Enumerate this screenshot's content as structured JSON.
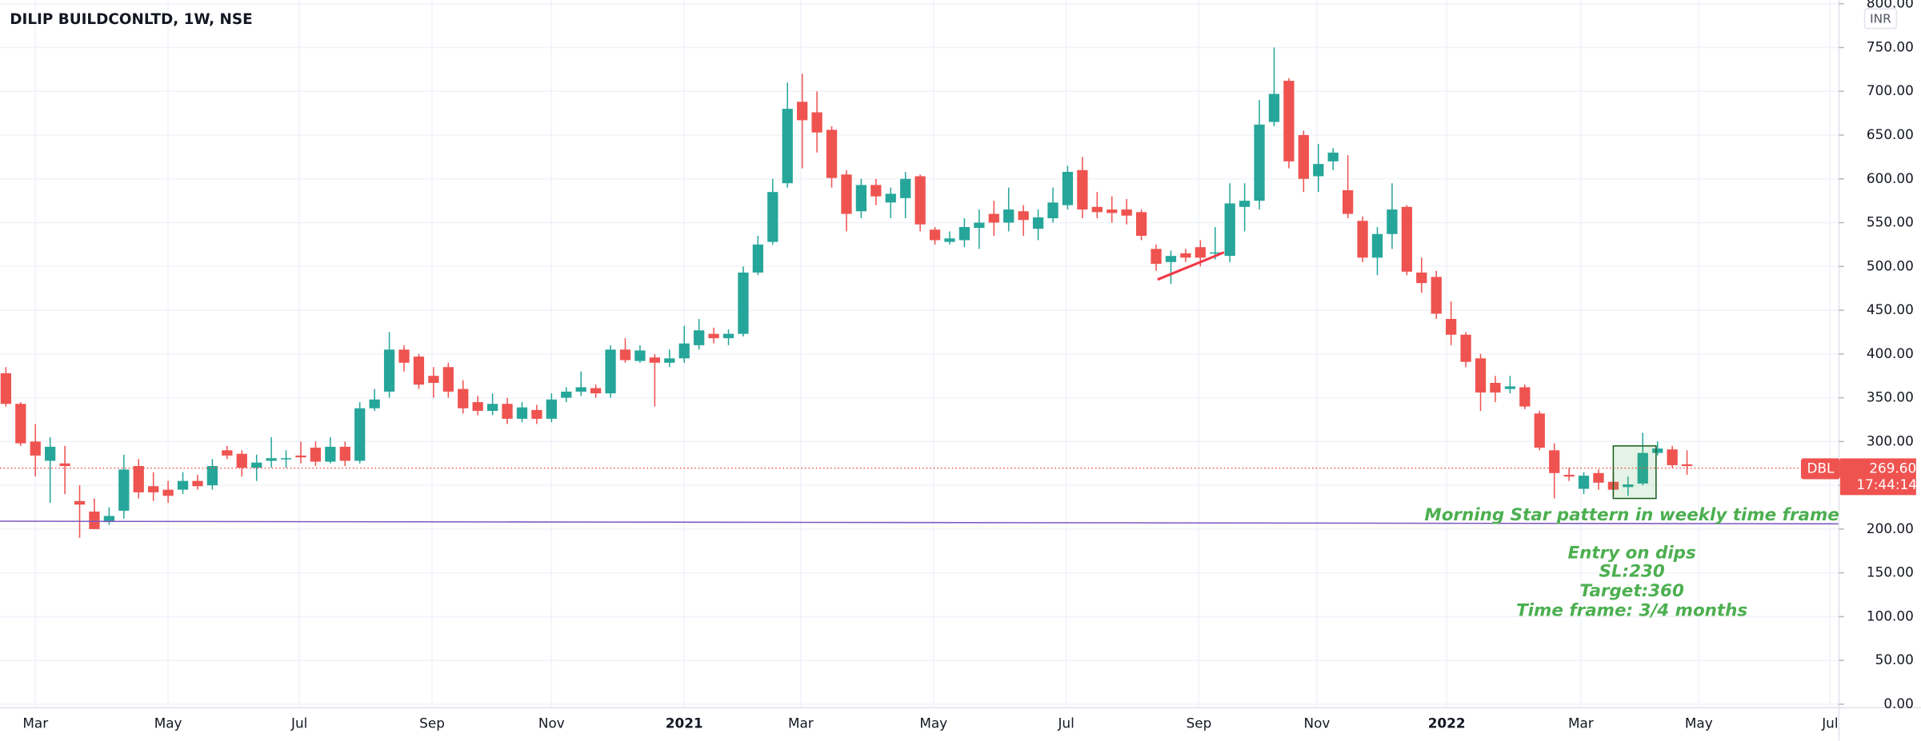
{
  "chart_data": {
    "type": "candlestick",
    "title": "DILIP BUILDCONLTD, 1W, NSE",
    "currency": "INR",
    "symbol": "DBL",
    "up_color": "#26a69a",
    "down_color": "#ef5350",
    "open": [
      378,
      343,
      300,
      278,
      275,
      232,
      220,
      208,
      221,
      272,
      249,
      245,
      245,
      255,
      250,
      290,
      286,
      270,
      278,
      280,
      284,
      293,
      277,
      294,
      278,
      338,
      357,
      405,
      397,
      375,
      385,
      360,
      345,
      335,
      343,
      326,
      336,
      326,
      350,
      357,
      361,
      355,
      405,
      392,
      396,
      390,
      395,
      410,
      423,
      418,
      423,
      493,
      528,
      595,
      688,
      676,
      656,
      605,
      563,
      593,
      573,
      578,
      603,
      542,
      528,
      530,
      544,
      560,
      550,
      563,
      543,
      555,
      570,
      610,
      568,
      565,
      565,
      562,
      520,
      505,
      515,
      522,
      515,
      512,
      568,
      575,
      665,
      712,
      650,
      603,
      620,
      587,
      552,
      510,
      537,
      568,
      493,
      488,
      440,
      422,
      395,
      367,
      360,
      362,
      332,
      290,
      262,
      246,
      264,
      254,
      248,
      252,
      287,
      291,
      274
    ],
    "high": [
      385,
      345,
      320,
      305,
      295,
      250,
      235,
      225,
      285,
      280,
      265,
      255,
      265,
      262,
      280,
      295,
      290,
      285,
      305,
      290,
      300,
      300,
      305,
      300,
      345,
      360,
      425,
      410,
      400,
      385,
      390,
      370,
      352,
      355,
      350,
      345,
      342,
      355,
      362,
      380,
      365,
      410,
      418,
      410,
      400,
      405,
      432,
      440,
      430,
      428,
      500,
      535,
      600,
      710,
      720,
      700,
      660,
      610,
      600,
      600,
      590,
      608,
      605,
      545,
      540,
      555,
      565,
      575,
      590,
      570,
      565,
      590,
      615,
      625,
      585,
      580,
      577,
      565,
      525,
      518,
      520,
      530,
      545,
      595,
      595,
      690,
      750,
      715,
      655,
      640,
      635,
      627,
      557,
      545,
      595,
      570,
      510,
      495,
      460,
      425,
      400,
      375,
      375,
      365,
      335,
      298,
      270,
      265,
      268,
      265,
      260,
      310,
      300,
      295,
      290
    ],
    "low": [
      340,
      295,
      260,
      230,
      240,
      190,
      200,
      205,
      212,
      235,
      232,
      230,
      240,
      245,
      245,
      280,
      260,
      255,
      270,
      270,
      275,
      272,
      275,
      272,
      275,
      335,
      350,
      380,
      360,
      350,
      350,
      332,
      330,
      330,
      320,
      322,
      320,
      322,
      345,
      352,
      350,
      350,
      390,
      390,
      340,
      385,
      390,
      405,
      412,
      410,
      420,
      490,
      525,
      590,
      612,
      630,
      590,
      540,
      555,
      570,
      555,
      555,
      540,
      525,
      525,
      522,
      520,
      535,
      540,
      535,
      530,
      550,
      565,
      555,
      555,
      550,
      548,
      530,
      495,
      480,
      505,
      500,
      508,
      505,
      540,
      565,
      660,
      612,
      585,
      585,
      610,
      555,
      505,
      490,
      520,
      490,
      470,
      440,
      410,
      385,
      335,
      345,
      355,
      337,
      290,
      235,
      255,
      240,
      245,
      238,
      238,
      250,
      284,
      270,
      262
    ],
    "close": [
      343,
      298,
      284,
      294,
      272,
      228,
      200,
      215,
      268,
      242,
      242,
      238,
      255,
      249,
      272,
      284,
      270,
      276,
      281,
      281,
      282,
      277,
      294,
      278,
      338,
      348,
      405,
      390,
      365,
      367,
      357,
      338,
      335,
      343,
      326,
      339,
      326,
      348,
      357,
      362,
      355,
      405,
      393,
      404,
      390,
      395,
      412,
      427,
      418,
      423,
      493,
      525,
      585,
      680,
      667,
      653,
      601,
      560,
      593,
      580,
      583,
      600,
      548,
      530,
      532,
      545,
      550,
      550,
      565,
      553,
      556,
      573,
      608,
      565,
      562,
      561,
      558,
      535,
      503,
      512,
      510,
      510,
      516,
      572,
      575,
      662,
      697,
      620,
      600,
      617,
      630,
      560,
      510,
      537,
      565,
      494,
      481,
      446,
      422,
      391,
      356,
      356,
      363,
      340,
      293,
      264,
      260,
      261,
      253,
      245,
      251,
      287,
      292,
      273,
      272
    ],
    "xlim": [
      -0.4,
      124.3
    ],
    "xticks": [
      {
        "value": 2,
        "label": "Mar"
      },
      {
        "value": 11,
        "label": "May"
      },
      {
        "value": 19.9,
        "label": "Jul"
      },
      {
        "value": 28.9,
        "label": "Sep"
      },
      {
        "value": 37,
        "label": "Nov"
      },
      {
        "value": 46,
        "label": "2021"
      },
      {
        "value": 53.9,
        "label": "Mar"
      },
      {
        "value": 62.9,
        "label": "May"
      },
      {
        "value": 71.9,
        "label": "Jul"
      },
      {
        "value": 80.9,
        "label": "Sep"
      },
      {
        "value": 88.9,
        "label": "Nov"
      },
      {
        "value": 97.7,
        "label": "2022"
      },
      {
        "value": 106.8,
        "label": "Mar"
      },
      {
        "value": 114.8,
        "label": "May"
      },
      {
        "value": 123.7,
        "label": "Jul"
      }
    ],
    "ylim": [
      -4,
      804
    ],
    "yticks": [
      {
        "value": 0,
        "label": "0.00"
      },
      {
        "value": 50,
        "label": "50.00"
      },
      {
        "value": 100,
        "label": "100.00"
      },
      {
        "value": 150,
        "label": "150.00"
      },
      {
        "value": 200,
        "label": "200.00"
      },
      {
        "value": 250,
        "label": "250.00"
      },
      {
        "value": 300,
        "label": "300.00"
      },
      {
        "value": 350,
        "label": "350.00"
      },
      {
        "value": 400,
        "label": "400.00"
      },
      {
        "value": 450,
        "label": "450.00"
      },
      {
        "value": 500,
        "label": "500.00"
      },
      {
        "value": 550,
        "label": "550.00"
      },
      {
        "value": 600,
        "label": "600.00"
      },
      {
        "value": 650,
        "label": "650.00"
      },
      {
        "value": 700,
        "label": "700.00"
      },
      {
        "value": 750,
        "label": "750.00"
      },
      {
        "value": 800,
        "label": "800.00"
      }
    ],
    "grid": true,
    "last_price": 269.6,
    "last_price_label": "269.60",
    "countdown": "17:44:14",
    "support_line": {
      "x": [
        -0.4,
        124.3
      ],
      "y": [
        209,
        206
      ],
      "color": "#7e57c2"
    },
    "trend_line": {
      "x": [
        78.1,
        82.6
      ],
      "y": [
        485,
        516
      ],
      "color": "#f23645"
    },
    "pattern_box": {
      "x": [
        109,
        111.9
      ],
      "y": [
        235,
        295
      ]
    },
    "annotations": [
      "Morning Star pattern in weekly time frame",
      "Entry on dips",
      "SL:230",
      "Target:360",
      "Time frame: 3/4 months"
    ]
  }
}
